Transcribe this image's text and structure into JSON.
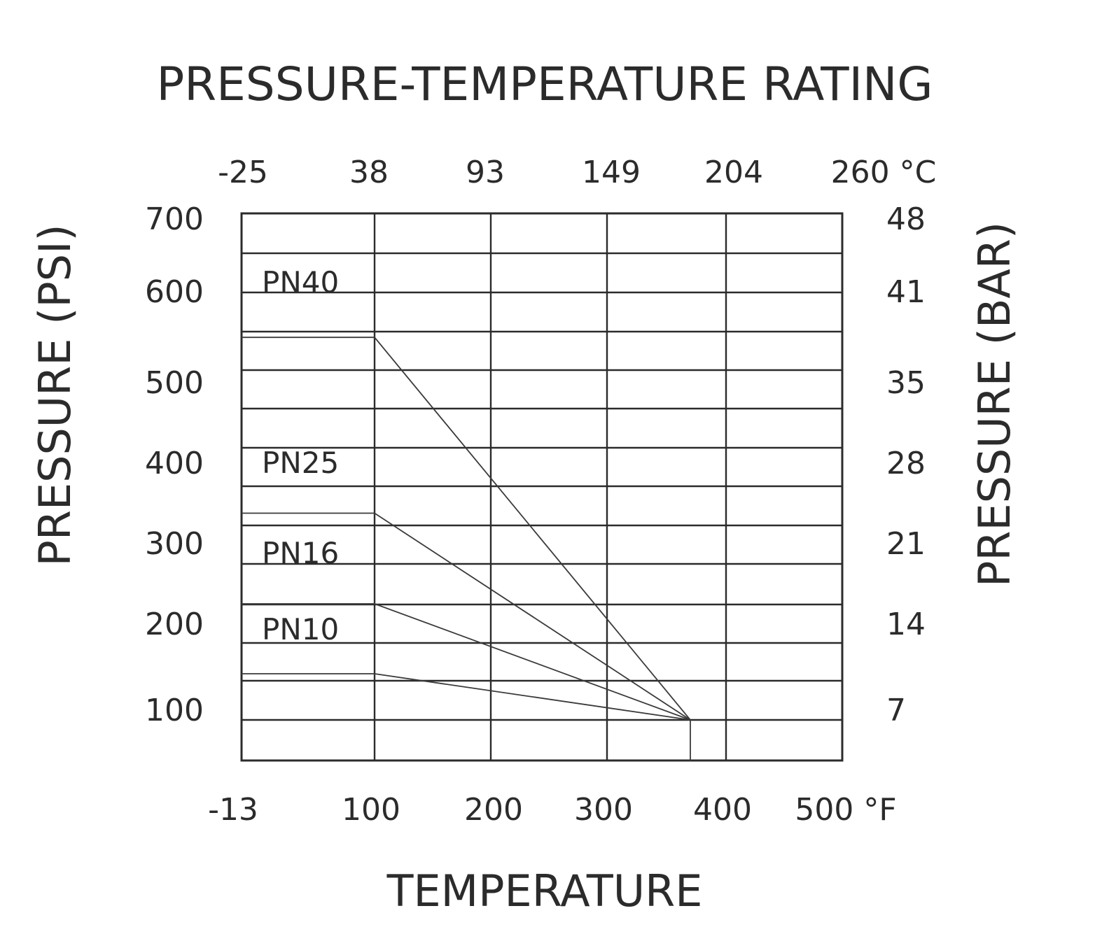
{
  "chart_data": {
    "type": "line",
    "title": "PRESSURE-TEMPERATURE RATING",
    "xlabel": "TEMPERATURE",
    "ylabel_left": "PRESSURE (PSI)",
    "ylabel_right": "PRESSURE (BAR)",
    "x_ticks_f": [
      "-13",
      "100",
      "200",
      "300",
      "400",
      "500 °F"
    ],
    "x_ticks_c": [
      "-25",
      "38",
      "93",
      "149",
      "204",
      "260 °C"
    ],
    "y_ticks_psi": [
      "700",
      "600",
      "500",
      "400",
      "300",
      "200",
      "100"
    ],
    "y_ticks_bar": [
      "48",
      "41",
      "35",
      "28",
      "21",
      "14",
      "7"
    ],
    "x_ticks_f_values": [
      -13,
      100,
      200,
      300,
      400,
      500
    ],
    "y_ticks_psi_values": [
      700,
      600,
      500,
      400,
      300,
      200,
      100
    ],
    "xlim": [
      -13,
      500
    ],
    "ylim": [
      50,
      700
    ],
    "grid": true,
    "series": [
      {
        "name": "PN40",
        "x": [
          -13,
          100,
          370
        ],
        "y": [
          590,
          590,
          100
        ]
      },
      {
        "name": "PN25",
        "x": [
          -13,
          100,
          370
        ],
        "y": [
          365,
          365,
          100
        ]
      },
      {
        "name": "PN16",
        "x": [
          -13,
          100,
          370
        ],
        "y": [
          250,
          250,
          100
        ]
      },
      {
        "name": "PN10",
        "x": [
          -13,
          100,
          370
        ],
        "y": [
          160,
          160,
          100
        ]
      }
    ],
    "end_drop": {
      "x": 370,
      "from": 100,
      "to": 50
    }
  }
}
